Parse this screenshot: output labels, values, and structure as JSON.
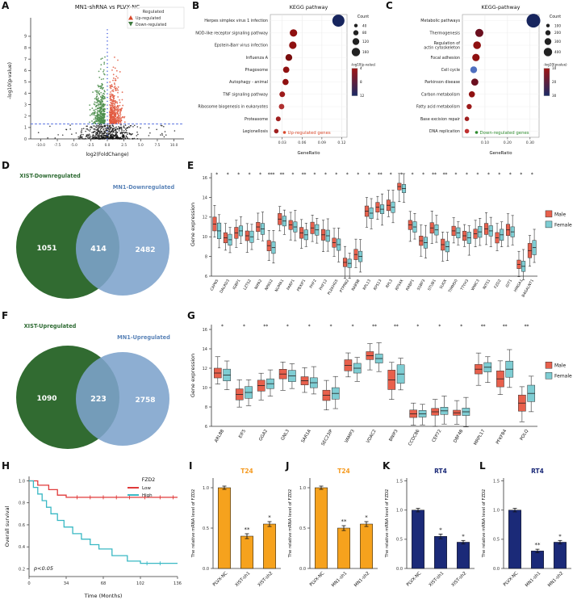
{
  "panelA": {
    "label": "A",
    "title": "MN1-shRNA vs PLVX-NC",
    "xlabel": "log2(FoldChange)",
    "ylabel": "-log10(p-value)",
    "x_ticks": [
      -10.0,
      -7.5,
      -5.0,
      -2.5,
      0.0,
      2.5,
      5.0,
      7.5,
      10.0
    ],
    "y_ticks": [
      0,
      1,
      2,
      3,
      4,
      5,
      6,
      7,
      8,
      9
    ],
    "legend_title": "Regulated",
    "legend": [
      {
        "label": "Up-regulated",
        "color": "#d9482b",
        "marker": "triangle-up"
      },
      {
        "label": "Down-regulated",
        "color": "#3f7a3f",
        "marker": "triangle-down"
      }
    ],
    "colors": {
      "up": "#e2593f",
      "down": "#4e8e4e",
      "ns": "#111111",
      "threshold_line": "#2b4bd9"
    },
    "threshold_y": 1.3
  },
  "panelB": {
    "label": "B",
    "title": "KEGG pathway",
    "xlabel": "GeneRatio",
    "x_ticks": [
      0.03,
      0.06,
      0.09,
      0.12
    ],
    "x_range": [
      0.012,
      0.128
    ],
    "annotation": {
      "text": "Up-regulated genes",
      "color": "#d9482b"
    },
    "legend_count": {
      "title": "Count",
      "values": [
        40,
        80,
        120,
        160
      ]
    },
    "legend_color": {
      "title": "-log10(p-value)",
      "ticks": [
        4,
        8,
        12
      ],
      "top_color": "#a01515",
      "bottom_color": "#1a2a66"
    },
    "pathways": [
      {
        "name": "Herpes simplex virus 1 infection",
        "ratio": 0.115,
        "size": 7.5,
        "color": "#17255e"
      },
      {
        "name": "NOD-like receptor signaling pathway",
        "ratio": 0.047,
        "size": 4.6,
        "color": "#8f1010"
      },
      {
        "name": "Epstein-Barr virus infection",
        "ratio": 0.046,
        "size": 4.6,
        "color": "#8f1010"
      },
      {
        "name": "Influenza A",
        "ratio": 0.04,
        "size": 4.2,
        "color": "#7a0d0d"
      },
      {
        "name": "Phagosome",
        "ratio": 0.036,
        "size": 3.9,
        "color": "#8f1010"
      },
      {
        "name": "Autophagy - animal",
        "ratio": 0.035,
        "size": 3.8,
        "color": "#8f1010"
      },
      {
        "name": "TNF signaling pathway",
        "ratio": 0.03,
        "size": 3.5,
        "color": "#9c1a1a"
      },
      {
        "name": "Ribosome biogenesis in eukaryotes",
        "ratio": 0.029,
        "size": 3.4,
        "color": "#b03030"
      },
      {
        "name": "Proteasome",
        "ratio": 0.024,
        "size": 3.0,
        "color": "#a02020"
      },
      {
        "name": "Legionellosis",
        "ratio": 0.021,
        "size": 2.8,
        "color": "#a02020"
      }
    ]
  },
  "panelC": {
    "label": "C",
    "title": "KEGG-pathway",
    "xlabel": "GeneRatio",
    "x_ticks": [
      0.1,
      0.2,
      0.3
    ],
    "x_range": [
      0.0,
      0.34
    ],
    "annotation": {
      "text": "Down-regulated genes",
      "color": "#2e8b2e"
    },
    "legend_count": {
      "title": "Count",
      "values": [
        100,
        200,
        300,
        400
      ]
    },
    "legend_color": {
      "title": "-log10(pvalue)",
      "ticks": [
        10,
        20,
        30
      ],
      "top_color": "#a01515",
      "bottom_color": "#1a2a66"
    },
    "pathways": [
      {
        "name": "Metabolic pathways",
        "ratio": 0.315,
        "size": 8.5,
        "color": "#17255e"
      },
      {
        "name": "Thermogenesis",
        "ratio": 0.075,
        "size": 5.0,
        "color": "#6b0f1f"
      },
      {
        "name": "Regulation of\nactin cytoskeleton",
        "ratio": 0.065,
        "size": 4.8,
        "color": "#8f1010"
      },
      {
        "name": "Focal adhesion",
        "ratio": 0.06,
        "size": 4.6,
        "color": "#8f1010"
      },
      {
        "name": "Cell cycle",
        "ratio": 0.05,
        "size": 4.2,
        "color": "#4f6fbf"
      },
      {
        "name": "Parkinson disease",
        "ratio": 0.055,
        "size": 4.4,
        "color": "#6b0f1f"
      },
      {
        "name": "Carbon metabolism",
        "ratio": 0.042,
        "size": 3.8,
        "color": "#8f1010"
      },
      {
        "name": "Fatty acid metabolism",
        "ratio": 0.03,
        "size": 3.2,
        "color": "#9c1a1a"
      },
      {
        "name": "Base excision repair",
        "ratio": 0.02,
        "size": 2.8,
        "color": "#a02020"
      },
      {
        "name": "DNA replication",
        "ratio": 0.02,
        "size": 2.8,
        "color": "#c03030"
      }
    ]
  },
  "panelD": {
    "label": "D",
    "left": {
      "title": "XIST-Downregulated",
      "value": "1051",
      "color": "#316b31",
      "text_color": "#2e6b33"
    },
    "right": {
      "title": "MN1-Downregulated",
      "value": "2482",
      "color": "#7da3cc",
      "text_color": "#5b84b8"
    },
    "overlap": "414"
  },
  "panelE": {
    "label": "E",
    "ylabel": "Gene expression",
    "y_ticks": [
      6,
      8,
      10,
      12,
      14,
      16
    ],
    "y_range": [
      6,
      16.5
    ],
    "legend": [
      {
        "label": "Male",
        "color": "#e8604c"
      },
      {
        "label": "Female",
        "color": "#7ecdd3"
      }
    ],
    "genes": [
      {
        "name": "CAPN5",
        "sig": "*",
        "male": 11.3,
        "female": 10.6,
        "iqr": 1.4
      },
      {
        "name": "DALRD3",
        "sig": "*",
        "male": 9.9,
        "female": 9.7,
        "iqr": 0.9
      },
      {
        "name": "IGBP1",
        "sig": "*",
        "male": 10.4,
        "female": 10.6,
        "iqr": 0.9
      },
      {
        "name": "LZTS2",
        "sig": "*",
        "male": 10.1,
        "female": 10.0,
        "iqr": 0.9
      },
      {
        "name": "NIPA2",
        "sig": "*",
        "male": 11.0,
        "female": 10.8,
        "iqr": 0.9
      },
      {
        "name": "NPAS2",
        "sig": "***",
        "male": 9.1,
        "female": 8.9,
        "iqr": 0.9
      },
      {
        "name": "NUMA1",
        "sig": "**",
        "male": 11.8,
        "female": 11.6,
        "iqr": 0.9
      },
      {
        "name": "PARP1",
        "sig": "*",
        "male": 11.2,
        "female": 11.0,
        "iqr": 0.9
      },
      {
        "name": "PBXIP1",
        "sig": "**",
        "male": 10.4,
        "female": 10.2,
        "iqr": 0.9
      },
      {
        "name": "PHF2",
        "sig": "*",
        "male": 10.9,
        "female": 10.7,
        "iqr": 0.9
      },
      {
        "name": "PHF12",
        "sig": "*",
        "male": 10.2,
        "female": 10.1,
        "iqr": 0.9
      },
      {
        "name": "PLEKHG5",
        "sig": "*",
        "male": 9.4,
        "female": 9.2,
        "iqr": 0.9
      },
      {
        "name": "PTPRN2",
        "sig": "*",
        "male": 7.4,
        "female": 7.3,
        "iqr": 0.7
      },
      {
        "name": "RAB9B",
        "sig": "*",
        "male": 8.2,
        "female": 8.0,
        "iqr": 0.9
      },
      {
        "name": "RPL13",
        "sig": "*",
        "male": 12.6,
        "female": 12.4,
        "iqr": 0.9
      },
      {
        "name": "RPS13",
        "sig": "**",
        "male": 13.0,
        "female": 12.8,
        "iqr": 0.9
      },
      {
        "name": "RPL3",
        "sig": "*",
        "male": 13.2,
        "female": 13.0,
        "iqr": 0.9
      },
      {
        "name": "RPS4X",
        "sig": "*",
        "male": 15.1,
        "female": 14.9,
        "iqr": 0.6
      },
      {
        "name": "RRBP1",
        "sig": "*",
        "male": 11.2,
        "female": 11.0,
        "iqr": 0.9
      },
      {
        "name": "SSBP3",
        "sig": "*",
        "male": 9.6,
        "female": 9.4,
        "iqr": 0.9
      },
      {
        "name": "STUB1",
        "sig": "**",
        "male": 10.9,
        "female": 10.7,
        "iqr": 0.9
      },
      {
        "name": "SUOX",
        "sig": "**",
        "male": 9.2,
        "female": 9.0,
        "iqr": 0.9
      },
      {
        "name": "TIMM50",
        "sig": "*",
        "male": 10.6,
        "female": 10.4,
        "iqr": 0.9
      },
      {
        "name": "TTYH3",
        "sig": "*",
        "male": 10.1,
        "female": 9.9,
        "iqr": 0.9
      },
      {
        "name": "WWC3",
        "sig": "*",
        "male": 10.3,
        "female": 10.5,
        "iqr": 0.9
      },
      {
        "name": "INTS1",
        "sig": "*",
        "male": 10.8,
        "female": 10.6,
        "iqr": 0.9
      },
      {
        "name": "FZD2",
        "sig": "*",
        "male": 9.9,
        "female": 10.2,
        "iqr": 0.9
      },
      {
        "name": "GIT1",
        "sig": "*",
        "male": 10.7,
        "female": 10.5,
        "iqr": 0.9
      },
      {
        "name": "HMGA1",
        "sig": "*",
        "male": 7.2,
        "female": 7.0,
        "iqr": 0.8
      },
      {
        "name": "B4GALNT1",
        "sig": "*",
        "male": 8.6,
        "female": 8.9,
        "iqr": 1.3
      }
    ]
  },
  "panelF": {
    "label": "F",
    "left": {
      "title": "XIST-Upregulated",
      "value": "1090",
      "color": "#316b31",
      "text_color": "#2e6b33"
    },
    "right": {
      "title": "MN1-Upregulated",
      "value": "2758",
      "color": "#7da3cc",
      "text_color": "#5b84b8"
    },
    "overlap": "223"
  },
  "panelG": {
    "label": "G",
    "ylabel": "Gene expression",
    "y_ticks": [
      6,
      8,
      10,
      12,
      14,
      16
    ],
    "y_range": [
      6,
      16.5
    ],
    "legend": [
      {
        "label": "Male",
        "color": "#e8604c"
      },
      {
        "label": "Female",
        "color": "#7ecdd3"
      }
    ],
    "genes": [
      {
        "name": "ARL8B",
        "sig": "*",
        "male": 11.5,
        "female": 11.3,
        "iqr": 1.0
      },
      {
        "name": "EIF5",
        "sig": "*",
        "male": 9.3,
        "female": 9.5,
        "iqr": 1.0
      },
      {
        "name": "GGA2",
        "sig": "**",
        "male": 10.2,
        "female": 10.4,
        "iqr": 0.9
      },
      {
        "name": "GNL3",
        "sig": "*",
        "male": 11.4,
        "female": 11.2,
        "iqr": 0.9
      },
      {
        "name": "SAR1A",
        "sig": "*",
        "male": 10.7,
        "female": 10.5,
        "iqr": 0.8
      },
      {
        "name": "SEC23IP",
        "sig": "*",
        "male": 9.2,
        "female": 9.4,
        "iqr": 0.9
      },
      {
        "name": "VAMP3",
        "sig": "*",
        "male": 12.3,
        "female": 12.0,
        "iqr": 0.9
      },
      {
        "name": "VDAC2",
        "sig": "**",
        "male": 13.3,
        "female": 13.0,
        "iqr": 0.8
      },
      {
        "name": "BNIP3",
        "sig": "**",
        "male": 10.8,
        "female": 11.4,
        "iqr": 1.8
      },
      {
        "name": "CCDC86",
        "sig": "*",
        "male": 7.3,
        "female": 7.3,
        "iqr": 0.5
      },
      {
        "name": "CEP72",
        "sig": "*",
        "male": 7.5,
        "female": 7.6,
        "iqr": 0.5
      },
      {
        "name": "DBF4B",
        "sig": "*",
        "male": 7.4,
        "female": 7.5,
        "iqr": 0.5
      },
      {
        "name": "MRPL17",
        "sig": "**",
        "male": 11.9,
        "female": 12.1,
        "iqr": 0.8
      },
      {
        "name": "PFKFB4",
        "sig": "**",
        "male": 10.9,
        "female": 11.9,
        "iqr": 1.5
      },
      {
        "name": "POLQ",
        "sig": "**",
        "male": 8.4,
        "female": 9.4,
        "iqr": 1.5
      }
    ]
  },
  "panelH": {
    "label": "H",
    "ylabel": "Overall survival",
    "xlabel": "Time (Months)",
    "x_ticks": [
      0,
      34,
      68,
      102,
      136
    ],
    "y_ticks": [
      0.2,
      0.4,
      0.6,
      0.8,
      1.0
    ],
    "pvalue": "p<0.05",
    "legend_title": "FZD2",
    "series": [
      {
        "name": "Low",
        "color": "#e03a3a",
        "steps": [
          [
            0,
            1.0
          ],
          [
            8,
            1.0
          ],
          [
            8,
            0.96
          ],
          [
            18,
            0.96
          ],
          [
            18,
            0.92
          ],
          [
            26,
            0.92
          ],
          [
            26,
            0.87
          ],
          [
            34,
            0.87
          ],
          [
            34,
            0.85
          ],
          [
            136,
            0.85
          ]
        ],
        "censor": [
          [
            44,
            0.85
          ],
          [
            56,
            0.85
          ],
          [
            68,
            0.85
          ],
          [
            80,
            0.85
          ],
          [
            92,
            0.85
          ],
          [
            106,
            0.85
          ],
          [
            120,
            0.85
          ],
          [
            132,
            0.85
          ]
        ]
      },
      {
        "name": "High",
        "color": "#39b8c4",
        "steps": [
          [
            0,
            1.0
          ],
          [
            4,
            1.0
          ],
          [
            4,
            0.94
          ],
          [
            8,
            0.94
          ],
          [
            8,
            0.88
          ],
          [
            12,
            0.88
          ],
          [
            12,
            0.82
          ],
          [
            16,
            0.82
          ],
          [
            16,
            0.76
          ],
          [
            20,
            0.76
          ],
          [
            20,
            0.7
          ],
          [
            26,
            0.7
          ],
          [
            26,
            0.64
          ],
          [
            32,
            0.64
          ],
          [
            32,
            0.58
          ],
          [
            40,
            0.58
          ],
          [
            40,
            0.52
          ],
          [
            48,
            0.52
          ],
          [
            48,
            0.47
          ],
          [
            56,
            0.47
          ],
          [
            56,
            0.42
          ],
          [
            64,
            0.42
          ],
          [
            64,
            0.38
          ],
          [
            76,
            0.38
          ],
          [
            76,
            0.32
          ],
          [
            90,
            0.32
          ],
          [
            90,
            0.27
          ],
          [
            102,
            0.27
          ],
          [
            102,
            0.25
          ],
          [
            136,
            0.25
          ]
        ],
        "censor": [
          [
            108,
            0.25
          ],
          [
            120,
            0.25
          ]
        ]
      }
    ]
  },
  "panelI": {
    "label": "I",
    "title": "T24",
    "title_color": "#f59b22",
    "bar_color": "#f6a21d",
    "ylabel": "The relative mRNA level of FZD2",
    "y_ticks": [
      0.0,
      0.5,
      1.0
    ],
    "y_max": 1.12,
    "bars": [
      {
        "label": "PLVX-NC",
        "value": 1.0,
        "err": 0.02,
        "sig": ""
      },
      {
        "label": "XIST-sh1",
        "value": 0.4,
        "err": 0.03,
        "sig": "**"
      },
      {
        "label": "XIST-sh2",
        "value": 0.55,
        "err": 0.03,
        "sig": "*"
      }
    ]
  },
  "panelJ": {
    "label": "J",
    "title": "T24",
    "title_color": "#f59b22",
    "bar_color": "#f6a21d",
    "ylabel": "The relative mRNA level of FZD2",
    "y_ticks": [
      0.0,
      0.5,
      1.0
    ],
    "y_max": 1.12,
    "bars": [
      {
        "label": "PLVX-NC",
        "value": 1.0,
        "err": 0.02,
        "sig": ""
      },
      {
        "label": "MN1-sh1",
        "value": 0.5,
        "err": 0.03,
        "sig": "**"
      },
      {
        "label": "MN1-sh2",
        "value": 0.55,
        "err": 0.03,
        "sig": "*"
      }
    ]
  },
  "panelK": {
    "label": "K",
    "title": "RT4",
    "title_color": "#1b2a78",
    "bar_color": "#1b2a78",
    "ylabel": "The relative mRNA level of FZD2",
    "y_ticks": [
      0.0,
      0.5,
      1.0,
      1.5
    ],
    "y_max": 1.55,
    "bars": [
      {
        "label": "PLVX-NC",
        "value": 1.0,
        "err": 0.03,
        "sig": ""
      },
      {
        "label": "XIST-sh1",
        "value": 0.55,
        "err": 0.04,
        "sig": "*"
      },
      {
        "label": "XIST-sh2",
        "value": 0.45,
        "err": 0.03,
        "sig": "*"
      }
    ]
  },
  "panelL": {
    "label": "L",
    "title": "RT4",
    "title_color": "#1b2a78",
    "bar_color": "#1b2a78",
    "ylabel": "The relative mRNA level of FZD2",
    "y_ticks": [
      0.0,
      0.5,
      1.0,
      1.5
    ],
    "y_max": 1.55,
    "bars": [
      {
        "label": "PLVX-NC",
        "value": 1.0,
        "err": 0.03,
        "sig": ""
      },
      {
        "label": "MN1-sh1",
        "value": 0.3,
        "err": 0.03,
        "sig": "**"
      },
      {
        "label": "MN1-sh2",
        "value": 0.45,
        "err": 0.03,
        "sig": "*"
      }
    ]
  }
}
